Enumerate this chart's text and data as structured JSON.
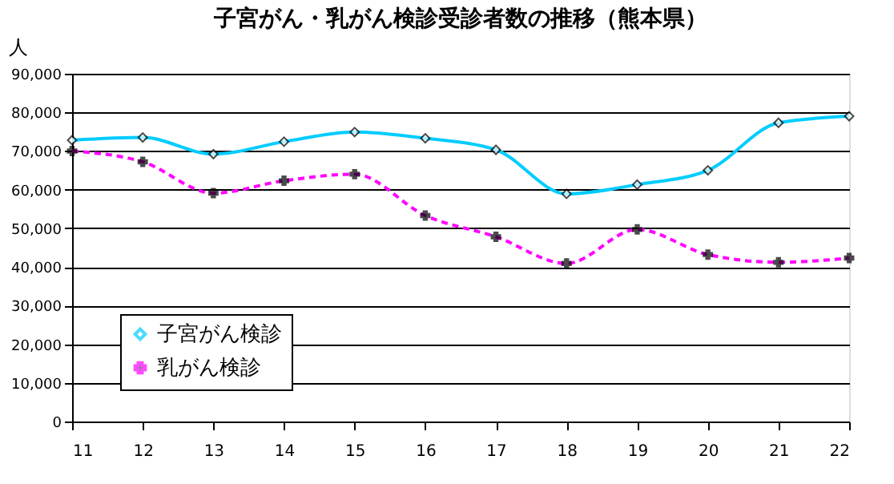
{
  "chart_data": {
    "type": "line",
    "title": "子宮がん・乳がん検診受診者数の推移（熊本県）",
    "ylabel": "人",
    "x": [
      11,
      12,
      13,
      14,
      15,
      16,
      17,
      18,
      19,
      20,
      21,
      22
    ],
    "series": [
      {
        "name": "子宮がん検診",
        "color": "#00ccff",
        "marker": "diamond",
        "line_style": "solid",
        "values": [
          72800,
          73500,
          69200,
          72400,
          74900,
          73300,
          70300,
          58900,
          61300,
          65000,
          77300,
          79000
        ]
      },
      {
        "name": "乳がん検診",
        "color": "#ff00ff",
        "marker": "cross",
        "line_style": "dashed",
        "values": [
          70000,
          67200,
          59100,
          62300,
          64000,
          53300,
          47800,
          40900,
          49700,
          43200,
          41200,
          42300
        ]
      }
    ],
    "xlim": [
      11,
      22
    ],
    "xticks": [
      11,
      12,
      13,
      14,
      15,
      16,
      17,
      18,
      19,
      20,
      21,
      22
    ],
    "ylim": [
      0,
      90000
    ],
    "yticks": [
      0,
      {
        "value": 10000,
        "label": "10,000"
      },
      {
        "value": 20000,
        "label": "20,000"
      },
      {
        "value": 30000,
        "label": "30,000"
      },
      {
        "value": 40000,
        "label": "40,000"
      },
      {
        "value": 50000,
        "label": "50,000"
      },
      {
        "value": 60000,
        "label": "60,000"
      },
      {
        "value": 70000,
        "label": "70,000"
      },
      {
        "value": 80000,
        "label": "80,000"
      },
      {
        "value": 90000,
        "label": "90,000"
      }
    ],
    "grid": "y",
    "legend": "bottom left"
  }
}
